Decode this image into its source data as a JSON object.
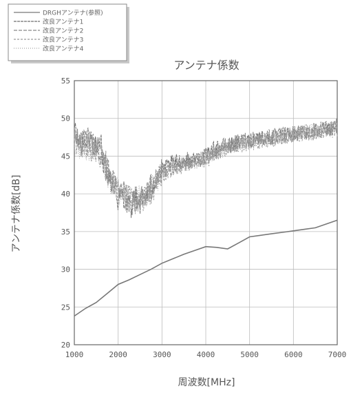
{
  "chart_data": {
    "type": "line",
    "title": "アンテナ係数",
    "xlabel": "周波数[MHz]",
    "ylabel": "アンテナ係数[dB]",
    "xlim": [
      1000,
      7000
    ],
    "ylim": [
      20,
      55
    ],
    "x_ticks": [
      "1000",
      "2000",
      "3000",
      "4000",
      "5000",
      "6000",
      "7000"
    ],
    "y_ticks": [
      "20",
      "25",
      "30",
      "35",
      "40",
      "45",
      "50",
      "55"
    ],
    "grid": true,
    "legend_position": "top-left",
    "series": [
      {
        "name": "DRGHアンテナ(参照)",
        "color": "#777777",
        "style": "solid",
        "x": [
          1000,
          1250,
          1500,
          1750,
          2000,
          2250,
          2500,
          2750,
          3000,
          3250,
          3500,
          3750,
          4000,
          4250,
          4500,
          4750,
          5000,
          5250,
          5500,
          5750,
          6000,
          6250,
          6500,
          6750,
          7000
        ],
        "y": [
          23.8,
          24.8,
          25.6,
          26.8,
          28.0,
          28.6,
          29.3,
          30.0,
          30.8,
          31.4,
          32.0,
          32.5,
          33.0,
          32.9,
          32.7,
          33.5,
          34.3,
          34.5,
          34.7,
          34.9,
          35.1,
          35.3,
          35.5,
          36.0,
          36.5
        ]
      },
      {
        "name": "改良アンテナ1",
        "color": "#6e6e6e",
        "style": "noisy",
        "x": [
          1000,
          1100,
          1200,
          1300,
          1400,
          1500,
          1600,
          1700,
          1800,
          1900,
          2000,
          2100,
          2200,
          2300,
          2400,
          2500,
          2600,
          2700,
          2800,
          2900,
          3000,
          3200,
          3400,
          3600,
          3800,
          4000,
          4200,
          4400,
          4600,
          4800,
          5000,
          5200,
          5400,
          5600,
          5800,
          6000,
          6200,
          6400,
          6600,
          6800,
          7000
        ],
        "y": [
          48.5,
          47.0,
          46.5,
          47.5,
          46.8,
          46.0,
          46.5,
          43.5,
          42.5,
          41.5,
          39.5,
          40.0,
          39.0,
          38.5,
          39.5,
          39.0,
          39.5,
          40.5,
          41.5,
          42.5,
          43.0,
          44.0,
          44.3,
          44.5,
          44.6,
          45.0,
          46.0,
          46.3,
          46.5,
          47.0,
          47.3,
          47.5,
          47.4,
          47.6,
          47.8,
          48.0,
          48.1,
          48.3,
          48.5,
          48.7,
          49.0
        ]
      },
      {
        "name": "改良アンテナ2",
        "color": "#888888",
        "style": "noisy",
        "x": [
          1000,
          1200,
          1400,
          1600,
          1800,
          2000,
          2200,
          2400,
          2600,
          2800,
          3000,
          3300,
          3600,
          4000,
          4400,
          4800,
          5200,
          5600,
          6000,
          6400,
          6800,
          7000
        ],
        "y": [
          47.5,
          46.8,
          46.5,
          45.5,
          43.0,
          40.5,
          39.8,
          39.2,
          39.8,
          41.0,
          42.5,
          43.8,
          44.2,
          44.8,
          46.0,
          46.8,
          47.2,
          47.6,
          47.9,
          48.3,
          48.6,
          48.8
        ]
      },
      {
        "name": "改良アンテナ3",
        "color": "#999999",
        "style": "noisy",
        "x": [
          1000,
          1200,
          1400,
          1600,
          1800,
          2000,
          2200,
          2400,
          2600,
          2800,
          3000,
          3300,
          3600,
          4000,
          4400,
          4800,
          5200,
          5600,
          6000,
          6400,
          6800,
          7000
        ],
        "y": [
          47.0,
          46.5,
          46.0,
          45.0,
          42.5,
          40.0,
          39.5,
          39.0,
          39.5,
          40.5,
          42.8,
          43.5,
          44.0,
          44.5,
          45.8,
          46.5,
          47.0,
          47.4,
          47.8,
          48.1,
          48.4,
          48.6
        ]
      },
      {
        "name": "改良アンテナ4",
        "color": "#a5a5a5",
        "style": "noisy",
        "x": [
          1000,
          1200,
          1400,
          1600,
          1800,
          2000,
          2200,
          2400,
          2600,
          2800,
          3000,
          3300,
          3600,
          4000,
          4400,
          4800,
          5200,
          5600,
          6000,
          6400,
          6800,
          7000
        ],
        "y": [
          46.8,
          46.2,
          46.0,
          45.2,
          42.0,
          40.2,
          39.6,
          39.3,
          39.6,
          40.8,
          42.6,
          43.6,
          44.1,
          44.6,
          45.9,
          46.6,
          47.1,
          47.5,
          47.9,
          48.2,
          48.5,
          48.7
        ]
      }
    ]
  }
}
